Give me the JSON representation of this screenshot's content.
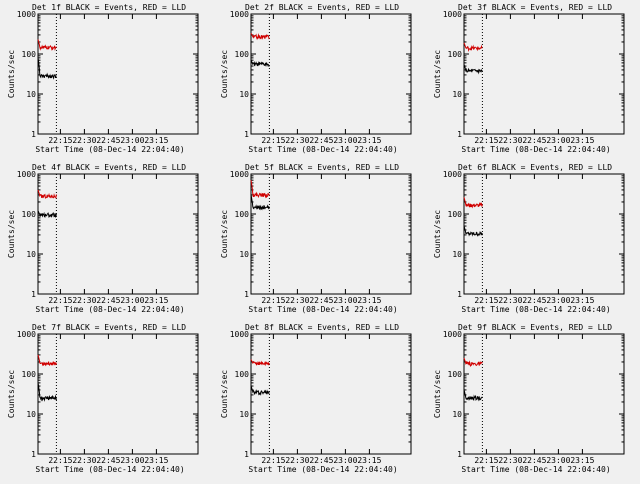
{
  "chart_data": [
    {
      "type": "line",
      "title": "Det 1f BLACK = Events, RED = LLD",
      "xlabel": "Start Time (08-Dec-14 22:04:40)",
      "ylabel": "Counts/sec",
      "x_ticks": [
        "22:15",
        "22:30",
        "22:45",
        "23:00",
        "23:15"
      ],
      "y_ticks": [
        "1",
        "10",
        "100",
        "1000"
      ],
      "ylim": [
        1,
        1000
      ],
      "yscale": "log",
      "x_range_min": [
        0,
        100
      ],
      "marker_line_min": 11.5,
      "data_end_min": 11.5,
      "series": [
        {
          "color": "#000000",
          "level": 28,
          "peak": 80
        },
        {
          "color": "#d00000",
          "level": 145,
          "peak": 230
        }
      ]
    },
    {
      "type": "line",
      "title": "Det 2f BLACK = Events, RED = LLD",
      "xlabel": "Start Time (08-Dec-14 22:04:40)",
      "ylabel": "Counts/sec",
      "x_ticks": [
        "22:15",
        "22:30",
        "22:45",
        "23:00",
        "23:15"
      ],
      "y_ticks": [
        "1",
        "10",
        "100",
        "1000"
      ],
      "ylim": [
        1,
        1000
      ],
      "yscale": "log",
      "x_range_min": [
        0,
        100
      ],
      "marker_line_min": 11.5,
      "data_end_min": 11.5,
      "series": [
        {
          "color": "#000000",
          "level": 55,
          "peak": 70
        },
        {
          "color": "#d00000",
          "level": 270,
          "peak": 330
        }
      ]
    },
    {
      "type": "line",
      "title": "Det 3f BLACK = Events, RED = LLD",
      "xlabel": "Start Time (08-Dec-14 22:04:40)",
      "ylabel": "Counts/sec",
      "x_ticks": [
        "22:15",
        "22:30",
        "22:45",
        "23:00",
        "23:15"
      ],
      "y_ticks": [
        "1",
        "10",
        "100",
        "1000"
      ],
      "ylim": [
        1,
        1000
      ],
      "yscale": "log",
      "x_range_min": [
        0,
        100
      ],
      "marker_line_min": 11.5,
      "data_end_min": 11.5,
      "series": [
        {
          "color": "#000000",
          "level": 38,
          "peak": 55
        },
        {
          "color": "#d00000",
          "level": 140,
          "peak": 190
        }
      ]
    },
    {
      "type": "line",
      "title": "Det 4f BLACK = Events, RED = LLD",
      "xlabel": "Start Time (08-Dec-14 22:04:40)",
      "ylabel": "Counts/sec",
      "x_ticks": [
        "22:15",
        "22:30",
        "22:45",
        "23:00",
        "23:15"
      ],
      "y_ticks": [
        "1",
        "10",
        "100",
        "1000"
      ],
      "ylim": [
        1,
        1000
      ],
      "yscale": "log",
      "x_range_min": [
        0,
        100
      ],
      "marker_line_min": 11.5,
      "data_end_min": 11.5,
      "series": [
        {
          "color": "#000000",
          "level": 95,
          "peak": 120
        },
        {
          "color": "#d00000",
          "level": 280,
          "peak": 400
        }
      ]
    },
    {
      "type": "line",
      "title": "Det 5f BLACK = Events, RED = LLD",
      "xlabel": "Start Time (08-Dec-14 22:04:40)",
      "ylabel": "Counts/sec",
      "x_ticks": [
        "22:15",
        "22:30",
        "22:45",
        "23:00",
        "23:15"
      ],
      "y_ticks": [
        "1",
        "10",
        "100",
        "1000"
      ],
      "ylim": [
        1,
        1000
      ],
      "yscale": "log",
      "x_range_min": [
        0,
        100
      ],
      "marker_line_min": 11.5,
      "data_end_min": 11.5,
      "series": [
        {
          "color": "#000000",
          "level": 145,
          "peak": 300
        },
        {
          "color": "#d00000",
          "level": 300,
          "peak": 700
        }
      ]
    },
    {
      "type": "line",
      "title": "Det 6f BLACK = Events, RED = LLD",
      "xlabel": "Start Time (08-Dec-14 22:04:40)",
      "ylabel": "Counts/sec",
      "x_ticks": [
        "22:15",
        "22:30",
        "22:45",
        "23:00",
        "23:15"
      ],
      "y_ticks": [
        "1",
        "10",
        "100",
        "1000"
      ],
      "ylim": [
        1,
        1000
      ],
      "yscale": "log",
      "x_range_min": [
        0,
        100
      ],
      "marker_line_min": 11.5,
      "data_end_min": 11.5,
      "series": [
        {
          "color": "#000000",
          "level": 32,
          "peak": 50
        },
        {
          "color": "#d00000",
          "level": 165,
          "peak": 260
        }
      ]
    },
    {
      "type": "line",
      "title": "Det 7f BLACK = Events, RED = LLD",
      "xlabel": "Start Time (08-Dec-14 22:04:40)",
      "ylabel": "Counts/sec",
      "x_ticks": [
        "22:15",
        "22:30",
        "22:45",
        "23:00",
        "23:15"
      ],
      "y_ticks": [
        "1",
        "10",
        "100",
        "1000"
      ],
      "ylim": [
        1,
        1000
      ],
      "yscale": "log",
      "x_range_min": [
        0,
        100
      ],
      "marker_line_min": 11.5,
      "data_end_min": 11.5,
      "series": [
        {
          "color": "#000000",
          "level": 25,
          "peak": 60
        },
        {
          "color": "#d00000",
          "level": 185,
          "peak": 300
        }
      ]
    },
    {
      "type": "line",
      "title": "Det 8f BLACK = Events, RED = LLD",
      "xlabel": "Start Time (08-Dec-14 22:04:40)",
      "ylabel": "Counts/sec",
      "x_ticks": [
        "22:15",
        "22:30",
        "22:45",
        "23:00",
        "23:15"
      ],
      "y_ticks": [
        "1",
        "10",
        "100",
        "1000"
      ],
      "ylim": [
        1,
        1000
      ],
      "yscale": "log",
      "x_range_min": [
        0,
        100
      ],
      "marker_line_min": 11.5,
      "data_end_min": 11.5,
      "series": [
        {
          "color": "#000000",
          "level": 35,
          "peak": 50
        },
        {
          "color": "#d00000",
          "level": 185,
          "peak": 230
        }
      ]
    },
    {
      "type": "line",
      "title": "Det 9f BLACK = Events, RED = LLD",
      "xlabel": "Start Time (08-Dec-14 22:04:40)",
      "ylabel": "Counts/sec",
      "x_ticks": [
        "22:15",
        "22:30",
        "22:45",
        "23:00",
        "23:15"
      ],
      "y_ticks": [
        "1",
        "10",
        "100",
        "1000"
      ],
      "ylim": [
        1,
        1000
      ],
      "yscale": "log",
      "x_range_min": [
        0,
        100
      ],
      "marker_line_min": 11.5,
      "data_end_min": 11.5,
      "series": [
        {
          "color": "#000000",
          "level": 25,
          "peak": 40
        },
        {
          "color": "#d00000",
          "level": 180,
          "peak": 250
        }
      ]
    }
  ]
}
